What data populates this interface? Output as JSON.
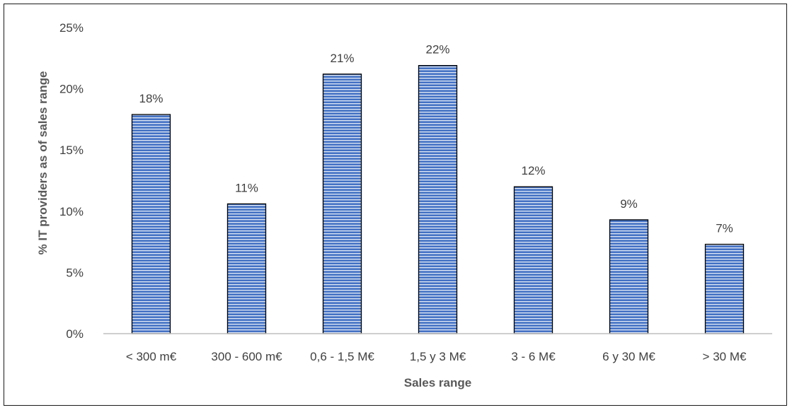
{
  "chart_data": {
    "type": "bar",
    "title": "",
    "xlabel": "Sales range",
    "ylabel": "% IT providers as of sales range",
    "categories": [
      "< 300 m€",
      "300 - 600 m€",
      "0,6 - 1,5 M€",
      "1,5 y 3 M€",
      "3 - 6 M€",
      "6 y 30 M€",
      "> 30 M€"
    ],
    "values": [
      17.9,
      10.6,
      21.2,
      21.9,
      12.0,
      9.3,
      7.3
    ],
    "data_labels": [
      "18%",
      "11%",
      "21%",
      "22%",
      "12%",
      "9%",
      "7%"
    ],
    "ylim": [
      0,
      25
    ],
    "yticks": [
      0,
      5,
      10,
      15,
      20,
      25
    ],
    "ytick_labels": [
      "0%",
      "5%",
      "10%",
      "15%",
      "20%",
      "25%"
    ],
    "grid": false,
    "legend": "none",
    "bar_color": "#4472c4",
    "bar_stripe_color": "#ffffff",
    "bar_edge_color": "#000000"
  }
}
